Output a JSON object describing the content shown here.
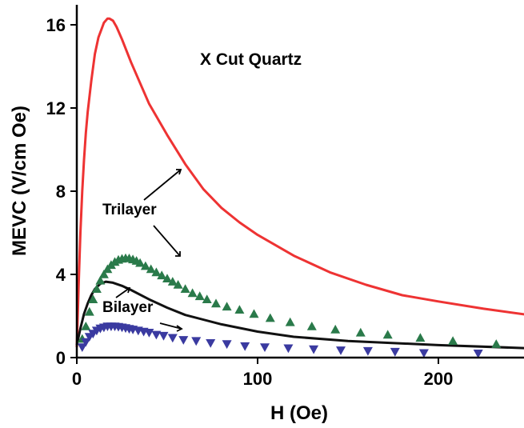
{
  "chart_data": {
    "type": "line",
    "title": "X Cut Quartz",
    "xlabel": "H (Oe)",
    "ylabel": "MEVC (V/cm Oe)",
    "xlim": [
      0,
      250
    ],
    "ylim": [
      0,
      16.5
    ],
    "xticks": [
      0,
      100,
      200
    ],
    "yticks": [
      0,
      4,
      8,
      12,
      16
    ],
    "xtick_labels": [
      "0",
      "100",
      "200"
    ],
    "ytick_labels": [
      "0",
      "4",
      "8",
      "12",
      "16"
    ],
    "annotations": [
      {
        "id": "trilayer",
        "text": "Trilayer"
      },
      {
        "id": "bilayer",
        "text": "Bilayer"
      }
    ],
    "series": [
      {
        "id": "trilayer-line",
        "style": "line",
        "color": "#ee3333",
        "x": [
          0,
          1,
          2,
          3,
          4,
          5,
          6,
          8,
          10,
          12,
          15,
          17,
          18,
          20,
          22,
          25,
          30,
          35,
          40,
          50,
          60,
          70,
          80,
          90,
          100,
          120,
          140,
          160,
          180,
          200,
          225,
          250
        ],
        "y": [
          0.5,
          3.5,
          6.0,
          8.0,
          9.5,
          10.8,
          11.8,
          13.3,
          14.6,
          15.4,
          16.1,
          16.3,
          16.3,
          16.2,
          15.9,
          15.3,
          14.2,
          13.2,
          12.2,
          10.7,
          9.3,
          8.1,
          7.2,
          6.5,
          5.9,
          4.9,
          4.1,
          3.5,
          3.0,
          2.7,
          2.35,
          2.05
        ]
      },
      {
        "id": "bilayer-line",
        "style": "line",
        "color": "#111111",
        "x": [
          0,
          2,
          4,
          6,
          8,
          10,
          13,
          16,
          20,
          25,
          30,
          40,
          50,
          60,
          80,
          100,
          120,
          150,
          200,
          250
        ],
        "y": [
          0.6,
          1.4,
          2.1,
          2.6,
          3.0,
          3.3,
          3.55,
          3.65,
          3.6,
          3.45,
          3.25,
          2.8,
          2.4,
          2.05,
          1.6,
          1.25,
          1.0,
          0.8,
          0.6,
          0.45
        ]
      },
      {
        "id": "trilayer-points",
        "style": "triangle-up",
        "color": "#2a7a4a",
        "x": [
          3,
          5,
          7,
          9,
          11,
          13,
          15,
          17,
          19,
          21,
          23,
          25,
          27,
          29,
          31,
          33,
          35,
          38,
          41,
          44,
          47,
          50,
          53,
          56,
          60,
          64,
          68,
          72,
          77,
          83,
          90,
          98,
          107,
          118,
          130,
          143,
          157,
          172,
          190,
          208,
          232
        ],
        "y": [
          0.9,
          1.5,
          2.2,
          2.8,
          3.3,
          3.7,
          4.0,
          4.25,
          4.45,
          4.6,
          4.7,
          4.75,
          4.78,
          4.77,
          4.72,
          4.65,
          4.55,
          4.4,
          4.25,
          4.1,
          3.95,
          3.8,
          3.65,
          3.5,
          3.3,
          3.1,
          2.95,
          2.8,
          2.6,
          2.45,
          2.3,
          2.1,
          1.9,
          1.7,
          1.5,
          1.35,
          1.2,
          1.1,
          0.95,
          0.8,
          0.65
        ]
      },
      {
        "id": "bilayer-points",
        "style": "triangle-down",
        "color": "#3a3aa0",
        "x": [
          3,
          5,
          7,
          9,
          11,
          13,
          15,
          17,
          19,
          21,
          23,
          25,
          27,
          29,
          31,
          34,
          37,
          40,
          44,
          48,
          53,
          59,
          66,
          74,
          83,
          93,
          104,
          117,
          131,
          146,
          161,
          176,
          192,
          222
        ],
        "y": [
          0.5,
          0.75,
          1.0,
          1.15,
          1.3,
          1.4,
          1.45,
          1.5,
          1.5,
          1.5,
          1.48,
          1.45,
          1.42,
          1.38,
          1.35,
          1.3,
          1.25,
          1.2,
          1.1,
          1.05,
          0.95,
          0.85,
          0.8,
          0.7,
          0.65,
          0.55,
          0.5,
          0.45,
          0.4,
          0.35,
          0.32,
          0.28,
          0.22,
          0.2
        ]
      }
    ]
  }
}
